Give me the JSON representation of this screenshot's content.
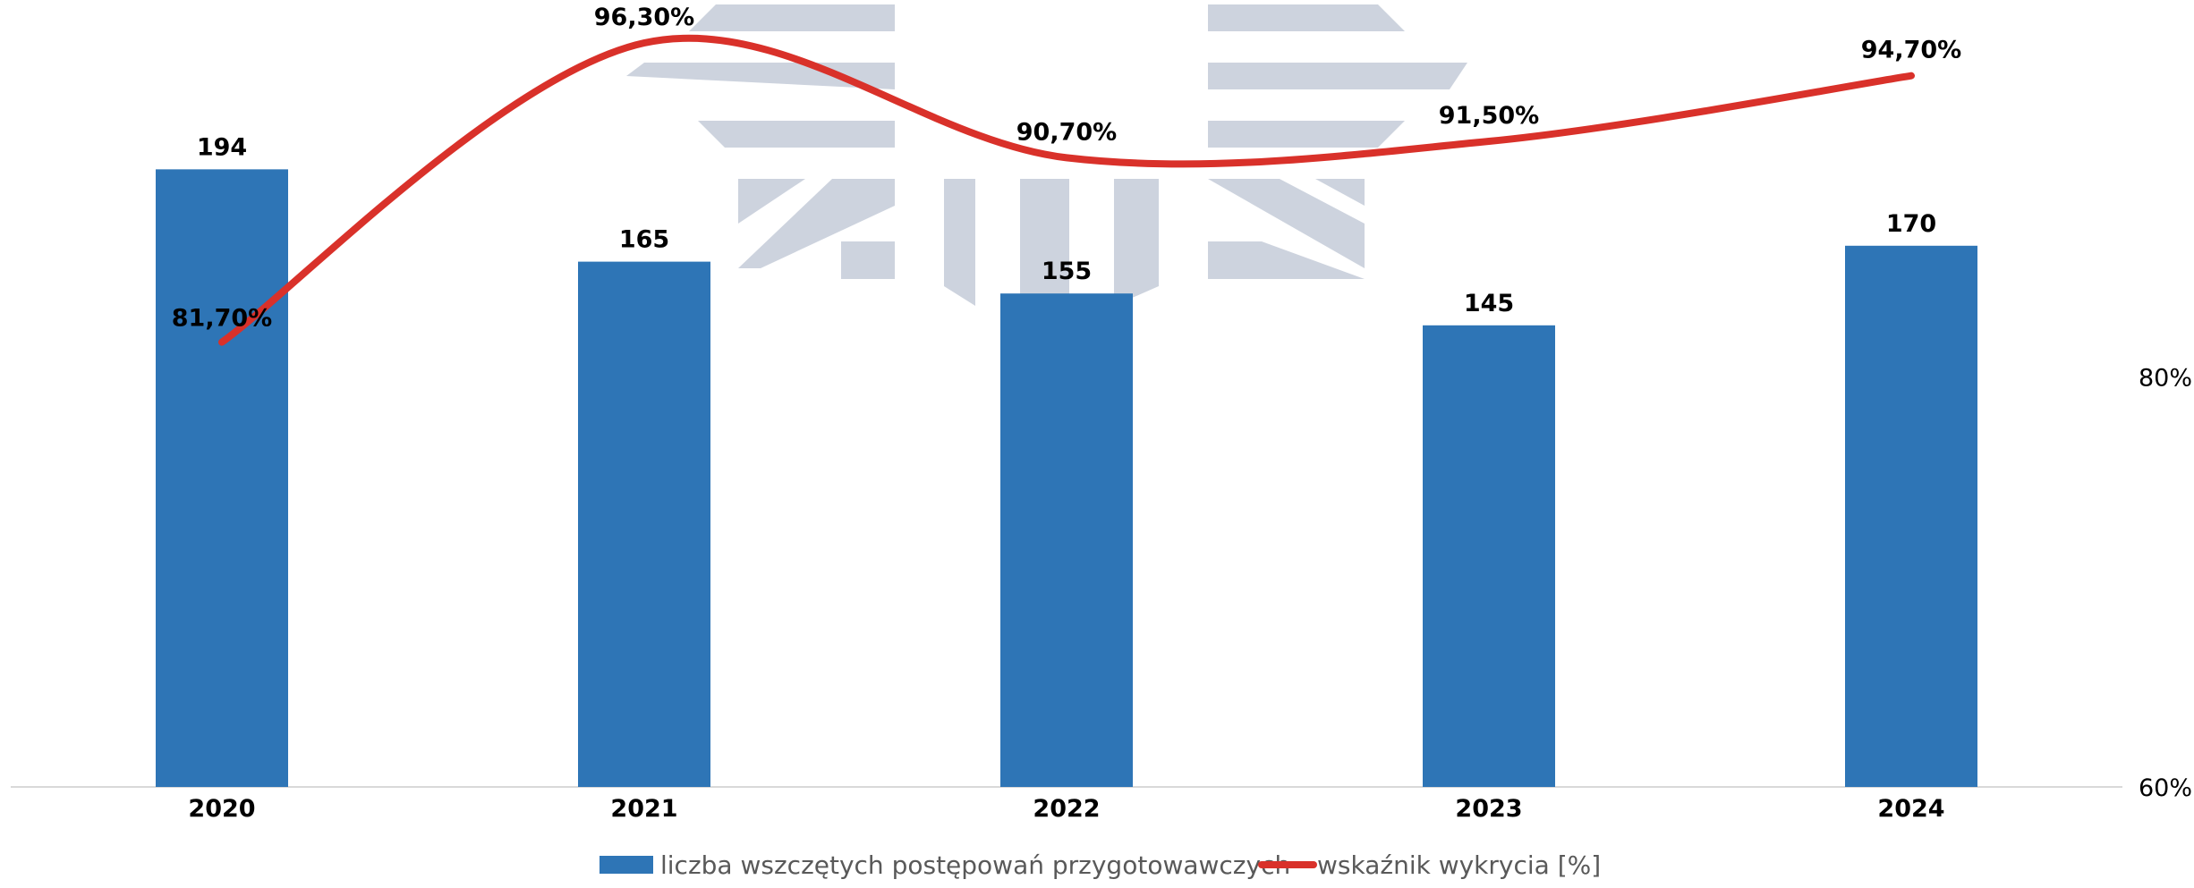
{
  "chart_data": {
    "type": "bar",
    "categories": [
      "2020",
      "2021",
      "2022",
      "2023",
      "2024"
    ],
    "series": [
      {
        "name": "liczba wszczętych postępowań przygotowawczych",
        "type": "bar",
        "axis": "primary",
        "values": [
          194,
          165,
          155,
          145,
          170
        ],
        "labels": [
          "194",
          "165",
          "155",
          "145",
          "170"
        ],
        "color": "#2E75B6"
      },
      {
        "name": "wskaźnik wykrycia [%]",
        "type": "line",
        "axis": "secondary",
        "smooth": true,
        "values": [
          81.7,
          96.3,
          90.7,
          91.5,
          94.7
        ],
        "labels": [
          "81,70%",
          "96,30%",
          "90,70%",
          "91,50%",
          "94,70%"
        ],
        "color": "#D9312A"
      }
    ],
    "primary_ylim": [
      0,
      250
    ],
    "secondary_ylim": [
      60,
      100
    ],
    "secondary_ticks": [
      "60%",
      "80%"
    ],
    "grid": false,
    "legend_position": "bottom"
  }
}
